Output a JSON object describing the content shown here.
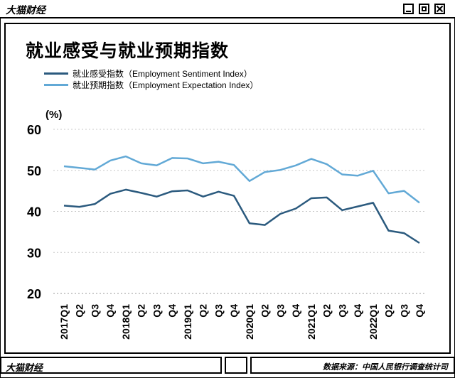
{
  "header": {
    "brand": "大猫财经"
  },
  "footer": {
    "brand": "大猫财经",
    "source": "数据来源：中国人民银行调查统计司"
  },
  "colors": {
    "series1": "#2b5a7e",
    "series2": "#62a9d6",
    "grid": "#c8c8c8"
  },
  "chart_data": {
    "type": "line",
    "title": "就业感受与就业预期指数",
    "ylabel": "(%)",
    "ylim": [
      20,
      60
    ],
    "yticks": [
      60,
      50,
      40,
      30,
      20
    ],
    "grid": true,
    "legend_position": "top-left",
    "x": [
      "2017Q1",
      "Q2",
      "Q3",
      "Q4",
      "2018Q1",
      "Q2",
      "Q3",
      "Q4",
      "2019Q1",
      "Q2",
      "Q3",
      "Q4",
      "2020Q1",
      "Q2",
      "Q3",
      "Q4",
      "2021Q1",
      "Q2",
      "Q3",
      "Q4",
      "2022Q1",
      "Q2",
      "Q3",
      "Q4"
    ],
    "series": [
      {
        "name": "就业感受指数（Employment Sentiment Index）",
        "values": [
          41.4,
          41.1,
          41.8,
          44.3,
          45.3,
          44.5,
          43.6,
          44.9,
          45.1,
          43.6,
          44.8,
          43.8,
          37.1,
          36.7,
          39.4,
          40.7,
          43.2,
          43.4,
          40.3,
          41.2,
          42.1,
          35.3,
          34.7,
          32.3
        ]
      },
      {
        "name": "就业预期指数（Employment Expectation Index）",
        "values": [
          51.0,
          50.6,
          50.2,
          52.4,
          53.4,
          51.7,
          51.2,
          53.0,
          52.9,
          51.7,
          52.1,
          51.3,
          47.4,
          49.6,
          50.1,
          51.2,
          52.8,
          51.5,
          49.0,
          48.7,
          49.9,
          44.4,
          45.0,
          42.1
        ]
      }
    ]
  }
}
